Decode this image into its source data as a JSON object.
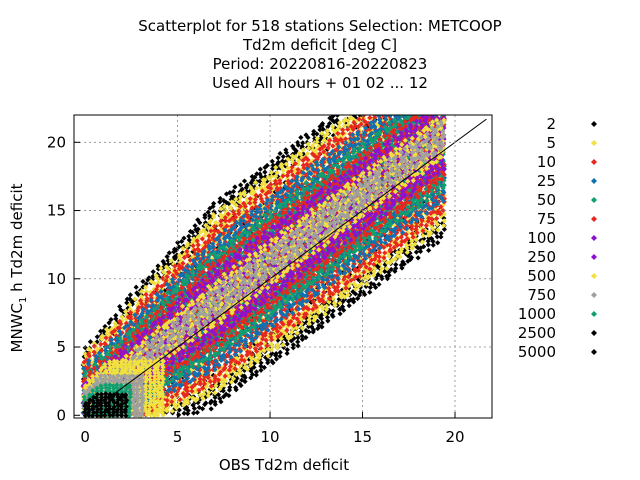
{
  "chart_data": {
    "type": "scatter",
    "title_lines": [
      "Scatterplot for  518 stations Selection: METCOOP",
      "Td2m deficit [deg C]",
      "Period: 20220816-20220823",
      "Used  All hours  + 01 02 ... 12"
    ],
    "xlabel": "OBS Td2m deficit",
    "ylabel": "MNWC",
    "ylabel_sub": "1",
    "ylabel_rest": " h Td2m deficit",
    "xlim": [
      -0.6,
      22
    ],
    "ylim": [
      -0.2,
      22
    ],
    "xticks": [
      0,
      5,
      10,
      15,
      20
    ],
    "yticks": [
      0,
      5,
      10,
      15,
      20
    ],
    "grid": true,
    "diagonal": true,
    "legend_position": "right",
    "legend": [
      {
        "label": "2",
        "color": "#000000"
      },
      {
        "label": "5",
        "color": "#f0e040"
      },
      {
        "label": "10",
        "color": "#e8281e"
      },
      {
        "label": "25",
        "color": "#1070b0"
      },
      {
        "label": "50",
        "color": "#10a070"
      },
      {
        "label": "75",
        "color": "#e8281e"
      },
      {
        "label": "100",
        "color": "#9010d0"
      },
      {
        "label": "250",
        "color": "#9010d0"
      },
      {
        "label": "500",
        "color": "#f0e040"
      },
      {
        "label": "750",
        "color": "#a0a0a0"
      },
      {
        "label": "1000",
        "color": "#10a070"
      },
      {
        "label": "2500",
        "color": "#000000"
      },
      {
        "label": "5000",
        "color": "#000000"
      }
    ],
    "density_bands": [
      {
        "color": "#000000",
        "width": 7.5,
        "scatter": 0.9
      },
      {
        "color": "#f0e040",
        "width": 6.6
      },
      {
        "color": "#e8281e",
        "width": 5.8
      },
      {
        "color": "#1070b0",
        "width": 4.8
      },
      {
        "color": "#10a070",
        "width": 3.9
      },
      {
        "color": "#e8281e",
        "width": 3.2
      },
      {
        "color": "#9010d0",
        "width": 2.6
      },
      {
        "color": "#f0e040",
        "width": 1.6
      },
      {
        "color": "#a0a0a0",
        "width": 1.0
      }
    ],
    "core_clusters": [
      {
        "color": "#f0e040",
        "x0": 0,
        "x1": 4.2,
        "y0": 0,
        "y1": 4.0
      },
      {
        "color": "#a0a0a0",
        "x0": 0,
        "x1": 3.2,
        "y0": 0,
        "y1": 3.0
      },
      {
        "color": "#10a070",
        "x0": 0,
        "x1": 2.6,
        "y0": 0,
        "y1": 2.2
      },
      {
        "color": "#000000",
        "x0": 0,
        "x1": 2.2,
        "y0": 0,
        "y1": 1.6
      }
    ]
  }
}
